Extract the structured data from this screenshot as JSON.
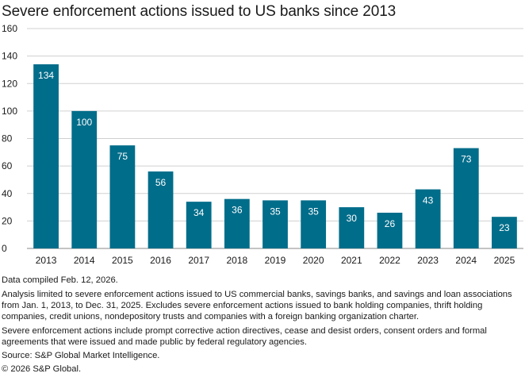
{
  "title": "Severe enforcement actions issued to US banks since 2013",
  "chart_data": {
    "type": "bar",
    "title": "Severe enforcement actions issued to US banks since 2013",
    "categories": [
      "2013",
      "2014",
      "2015",
      "2016",
      "2017",
      "2018",
      "2019",
      "2020",
      "2021",
      "2022",
      "2023",
      "2024",
      "2025"
    ],
    "values": [
      134,
      100,
      75,
      56,
      34,
      36,
      35,
      35,
      30,
      26,
      43,
      73,
      23
    ],
    "data_labels": [
      "134",
      "100",
      "75",
      "56",
      "34",
      "36",
      "35",
      "35",
      "30",
      "26",
      "43",
      "73",
      "23"
    ],
    "xlabel": "",
    "ylabel": "",
    "ylim": [
      0,
      160
    ],
    "yticks": [
      0,
      20,
      40,
      60,
      80,
      100,
      120,
      140,
      160
    ],
    "ytick_labels": [
      "0",
      "20",
      "40",
      "60",
      "80",
      "100",
      "120",
      "140",
      "160"
    ],
    "grid": true,
    "bar_color": "#006d8a",
    "grid_color": "#d0d0d0"
  },
  "notes": {
    "compiled": "Data compiled Feb. 12, 2026.",
    "analysis": "Analysis limited to severe enforcement actions issued to US commercial banks, savings banks, and savings and loan associations from Jan. 1, 2013, to Dec. 31, 2025. Excludes severe enforcement actions issued to bank holding companies, thrift holding companies, credit unions, nondepository trusts and companies with a foreign banking organization charter.",
    "definition": "Severe enforcement actions include prompt corrective action directives, cease and desist orders, consent orders and formal agreements that were issued and made public by federal regulatory agencies.",
    "source": "Source: S&P Global Market Intelligence.",
    "copyright": "© 2026 S&P Global."
  }
}
